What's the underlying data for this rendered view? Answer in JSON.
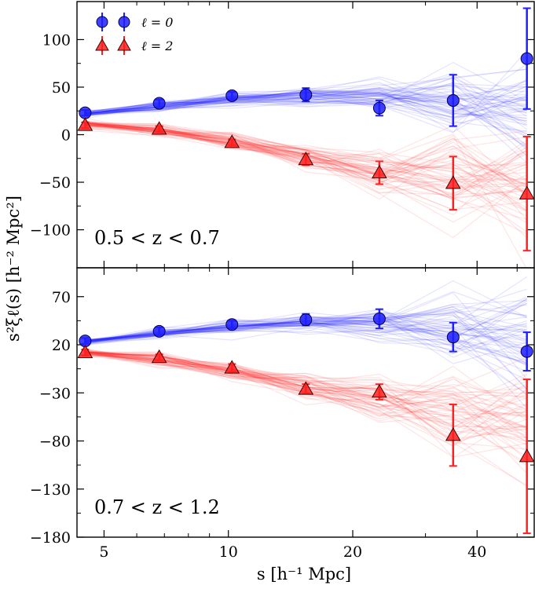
{
  "chart_data": [
    {
      "type": "scatter",
      "panel_label": "0.5 < z < 0.7",
      "xlabel": "s [h⁻¹ Mpc]",
      "ylabel": "s²ξℓ(s) [h⁻² Mpc²]",
      "xscale": "log",
      "xlim": [
        4.3,
        55
      ],
      "ylim": [
        -140,
        140
      ],
      "x_ticks": [
        5,
        10,
        20,
        40
      ],
      "y_ticks": [
        -100,
        -50,
        0,
        50,
        100
      ],
      "legend": {
        "position": "top-left",
        "entries": [
          "ℓ = 0",
          "ℓ = 2"
        ]
      },
      "colors": {
        "l0": "#1f1fff",
        "l2": "#ff2020"
      },
      "series": [
        {
          "name": "ℓ = 0",
          "marker": "circle",
          "x": [
            4.5,
            6.8,
            10.2,
            15.4,
            23.2,
            35.0,
            52.8
          ],
          "y": [
            23,
            33,
            41,
            42,
            28,
            36,
            80
          ],
          "err": [
            3,
            4,
            4,
            7,
            8,
            27,
            53
          ],
          "model": [
            22,
            30,
            37,
            40,
            40,
            36,
            30
          ]
        },
        {
          "name": "ℓ = 2",
          "marker": "triangle",
          "x": [
            4.5,
            6.8,
            10.2,
            15.4,
            23.2,
            35.0,
            52.8
          ],
          "y": [
            10,
            6,
            -8,
            -26,
            -40,
            -51,
            -62
          ],
          "err": [
            3,
            3,
            3,
            6,
            12,
            28,
            60
          ],
          "model": [
            11,
            4,
            -7,
            -22,
            -37,
            -48,
            -55
          ]
        }
      ]
    },
    {
      "type": "scatter",
      "panel_label": "0.7 < z < 1.2",
      "xlabel": "s [h⁻¹ Mpc]",
      "ylabel": "s²ξℓ(s) [h⁻² Mpc²]",
      "xscale": "log",
      "xlim": [
        4.3,
        55
      ],
      "ylim": [
        -180,
        100
      ],
      "x_ticks": [
        5,
        10,
        20,
        40
      ],
      "y_ticks": [
        -180,
        -130,
        -80,
        -30,
        20,
        70
      ],
      "colors": {
        "l0": "#1f1fff",
        "l2": "#ff2020"
      },
      "series": [
        {
          "name": "ℓ = 0",
          "marker": "circle",
          "x": [
            4.5,
            6.8,
            10.2,
            15.4,
            23.2,
            35.0,
            52.8
          ],
          "y": [
            24,
            34,
            41,
            46,
            47,
            28,
            13
          ],
          "err": [
            3,
            4,
            4,
            6,
            10,
            15,
            20
          ],
          "model": [
            23,
            32,
            39,
            42,
            42,
            36,
            28
          ]
        },
        {
          "name": "ℓ = 2",
          "marker": "triangle",
          "x": [
            4.5,
            6.8,
            10.2,
            15.4,
            23.2,
            35.0,
            52.8
          ],
          "y": [
            12,
            7,
            -4,
            -26,
            -29,
            -74,
            -96
          ],
          "err": [
            3,
            3,
            4,
            5,
            8,
            32,
            80
          ],
          "model": [
            12,
            5,
            -7,
            -24,
            -38,
            -52,
            -62
          ]
        }
      ]
    }
  ]
}
